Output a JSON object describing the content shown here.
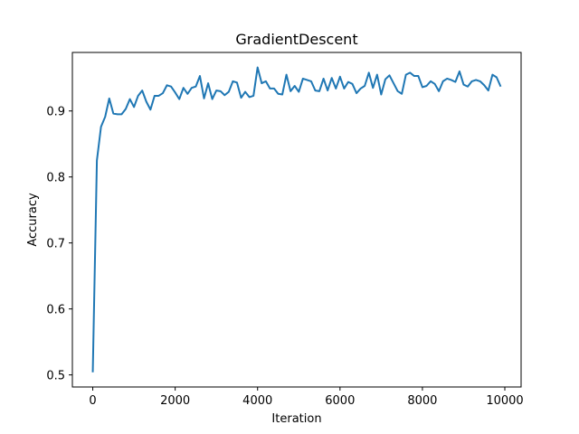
{
  "chart_data": {
    "type": "line",
    "title": "GradientDescent",
    "xlabel": "Iteration",
    "ylabel": "Accuracy",
    "xlim": [
      -495,
      10395
    ],
    "ylim": [
      0.4817,
      0.9887
    ],
    "xticks": [
      0,
      2000,
      4000,
      6000,
      8000,
      10000
    ],
    "yticks": [
      0.5,
      0.6,
      0.7,
      0.8,
      0.9
    ],
    "ytick_labels": [
      "0.5",
      "0.6",
      "0.7",
      "0.8",
      "0.9"
    ],
    "grid": false,
    "series_color": "#1f77b4",
    "x": [
      0,
      100,
      200,
      300,
      400,
      500,
      600,
      700,
      800,
      900,
      1000,
      1100,
      1200,
      1300,
      1400,
      1500,
      1600,
      1700,
      1800,
      1900,
      2000,
      2100,
      2200,
      2300,
      2400,
      2500,
      2600,
      2700,
      2800,
      2900,
      3000,
      3100,
      3200,
      3300,
      3400,
      3500,
      3600,
      3700,
      3800,
      3900,
      4000,
      4100,
      4200,
      4300,
      4400,
      4500,
      4600,
      4700,
      4800,
      4900,
      5000,
      5100,
      5200,
      5300,
      5400,
      5500,
      5600,
      5700,
      5800,
      5900,
      6000,
      6100,
      6200,
      6300,
      6400,
      6500,
      6600,
      6700,
      6800,
      6900,
      7000,
      7100,
      7200,
      7300,
      7400,
      7500,
      7600,
      7700,
      7800,
      7900,
      8000,
      8100,
      8200,
      8300,
      8400,
      8500,
      8600,
      8700,
      8800,
      8900,
      9000,
      9100,
      9200,
      9300,
      9400,
      9500,
      9600,
      9700,
      9800,
      9900
    ],
    "y": [
      0.504,
      0.825,
      0.876,
      0.891,
      0.919,
      0.896,
      0.895,
      0.895,
      0.903,
      0.918,
      0.906,
      0.923,
      0.931,
      0.914,
      0.902,
      0.923,
      0.923,
      0.927,
      0.939,
      0.937,
      0.928,
      0.918,
      0.935,
      0.926,
      0.935,
      0.937,
      0.953,
      0.919,
      0.942,
      0.918,
      0.931,
      0.93,
      0.924,
      0.929,
      0.945,
      0.943,
      0.92,
      0.929,
      0.921,
      0.923,
      0.966,
      0.942,
      0.945,
      0.934,
      0.934,
      0.926,
      0.925,
      0.955,
      0.93,
      0.938,
      0.929,
      0.949,
      0.947,
      0.945,
      0.931,
      0.93,
      0.949,
      0.931,
      0.95,
      0.934,
      0.952,
      0.934,
      0.944,
      0.941,
      0.927,
      0.934,
      0.938,
      0.958,
      0.935,
      0.955,
      0.925,
      0.948,
      0.954,
      0.942,
      0.93,
      0.926,
      0.955,
      0.958,
      0.953,
      0.953,
      0.936,
      0.938,
      0.945,
      0.941,
      0.93,
      0.945,
      0.949,
      0.947,
      0.944,
      0.96,
      0.94,
      0.937,
      0.945,
      0.947,
      0.945,
      0.939,
      0.931,
      0.955,
      0.951,
      0.937
    ]
  }
}
